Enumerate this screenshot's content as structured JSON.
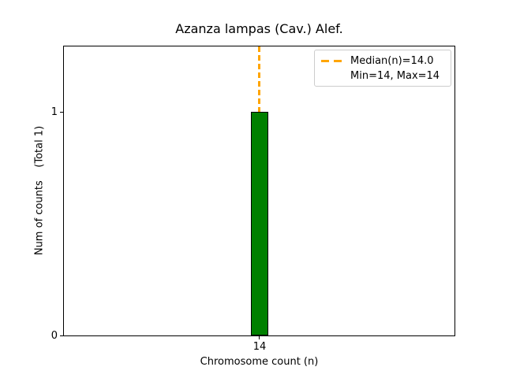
{
  "chart_data": {
    "type": "bar",
    "title": "Azanza lampas (Cav.) Alef.",
    "xlabel": "Chromosome count (n)",
    "ylabel": "Num of counts    (Total 1)",
    "categories": [
      "14"
    ],
    "values": [
      1
    ],
    "total_counts": 1,
    "x_tick_labels": [
      "14"
    ],
    "y_tick_labels": [
      "0",
      "1"
    ],
    "ylim": [
      0,
      1.3
    ],
    "grid": false,
    "bar_color": "#008000",
    "bar_edge_color": "#000000",
    "background_color": "#ffffff",
    "median_line": {
      "value": 14.0,
      "orientation": "vertical",
      "style": "dashed",
      "color": "#FFA500"
    },
    "legend": {
      "position": "upper-right",
      "border_color": "#cccccc",
      "entries": [
        {
          "handle": "orange-dashed-line",
          "label": "Median(n)=14.0"
        },
        {
          "handle": "none",
          "label": "Min=14, Max=14"
        }
      ]
    }
  }
}
